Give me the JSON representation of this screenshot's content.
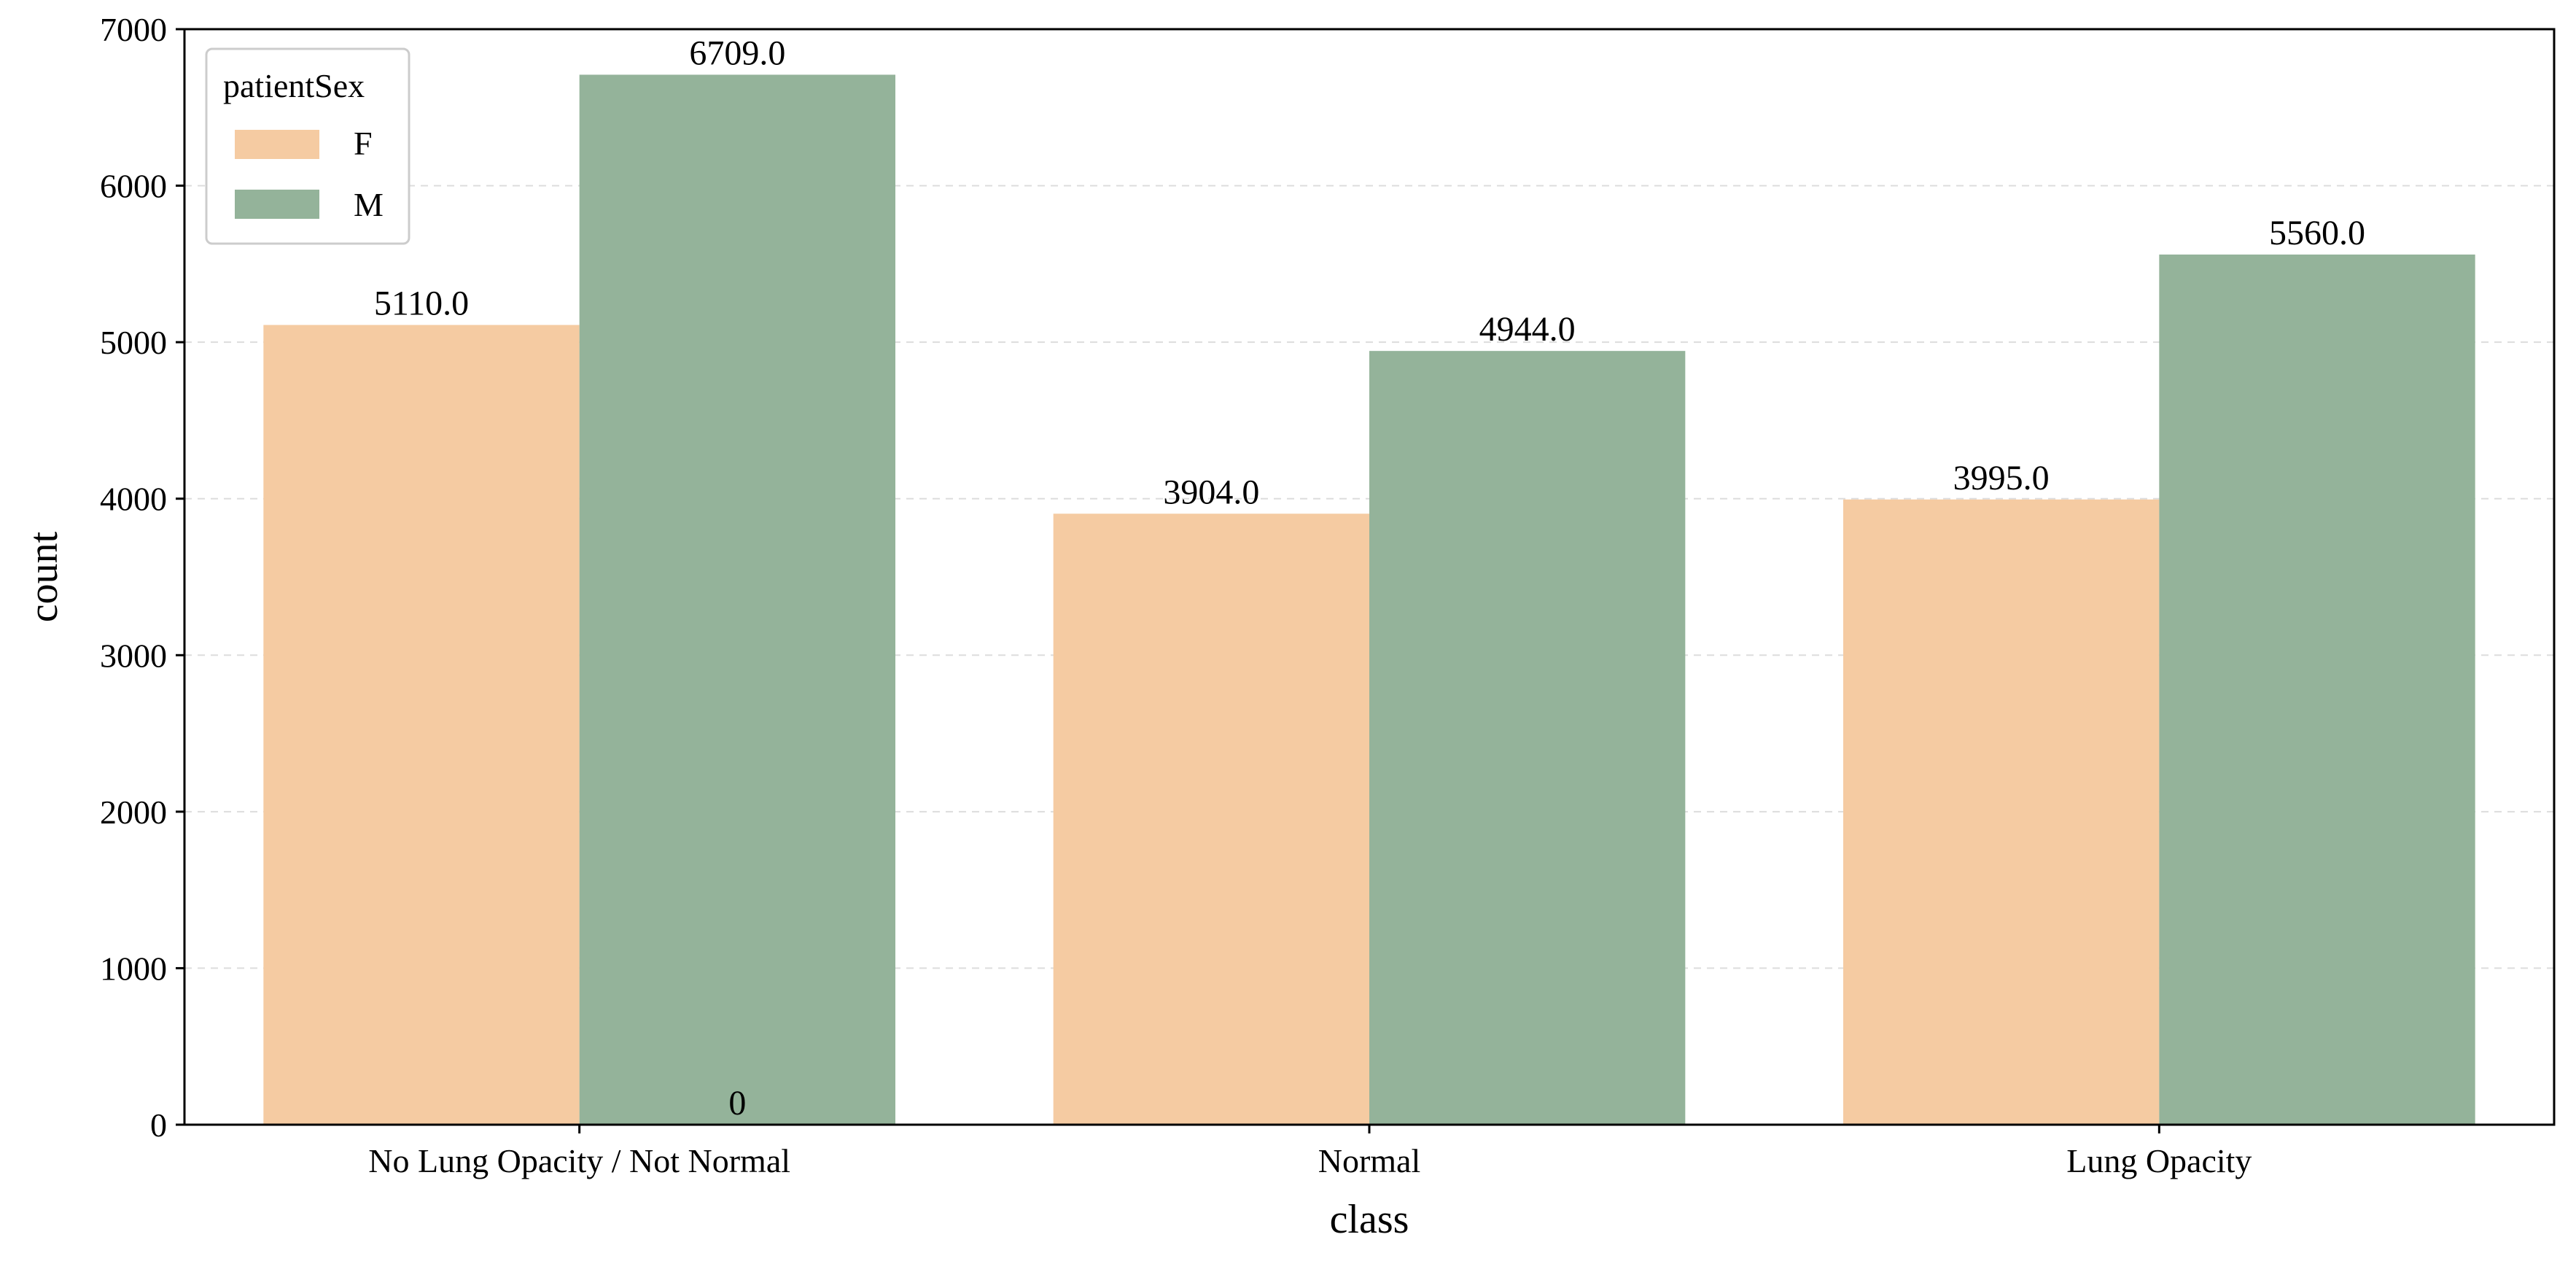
{
  "colors": {
    "female": "#f5cba2",
    "male": "#94b39a",
    "grid": "#dddddd",
    "axis": "#000000"
  },
  "chart_data": {
    "type": "bar",
    "xlabel": "class",
    "ylabel": "count",
    "categories": [
      "No Lung Opacity / Not Normal",
      "Normal",
      "Lung Opacity"
    ],
    "series": [
      {
        "name": "F",
        "values": [
          5110,
          3904,
          3995
        ],
        "labels": [
          "5110.0",
          "3904.0",
          "3995.0"
        ]
      },
      {
        "name": "M",
        "values": [
          6709,
          4944,
          5560
        ],
        "labels": [
          "6709.0",
          "4944.0",
          "5560.0"
        ]
      }
    ],
    "extra_annotation": {
      "text": "0",
      "category_index": 0,
      "series_index": 1,
      "value": 0
    },
    "ylim": [
      0,
      7000
    ],
    "yticks": [
      0,
      1000,
      2000,
      3000,
      4000,
      5000,
      6000,
      7000
    ],
    "grid": "horizontal dashed",
    "legend": {
      "title": "patientSex",
      "placement": "top-left"
    }
  }
}
